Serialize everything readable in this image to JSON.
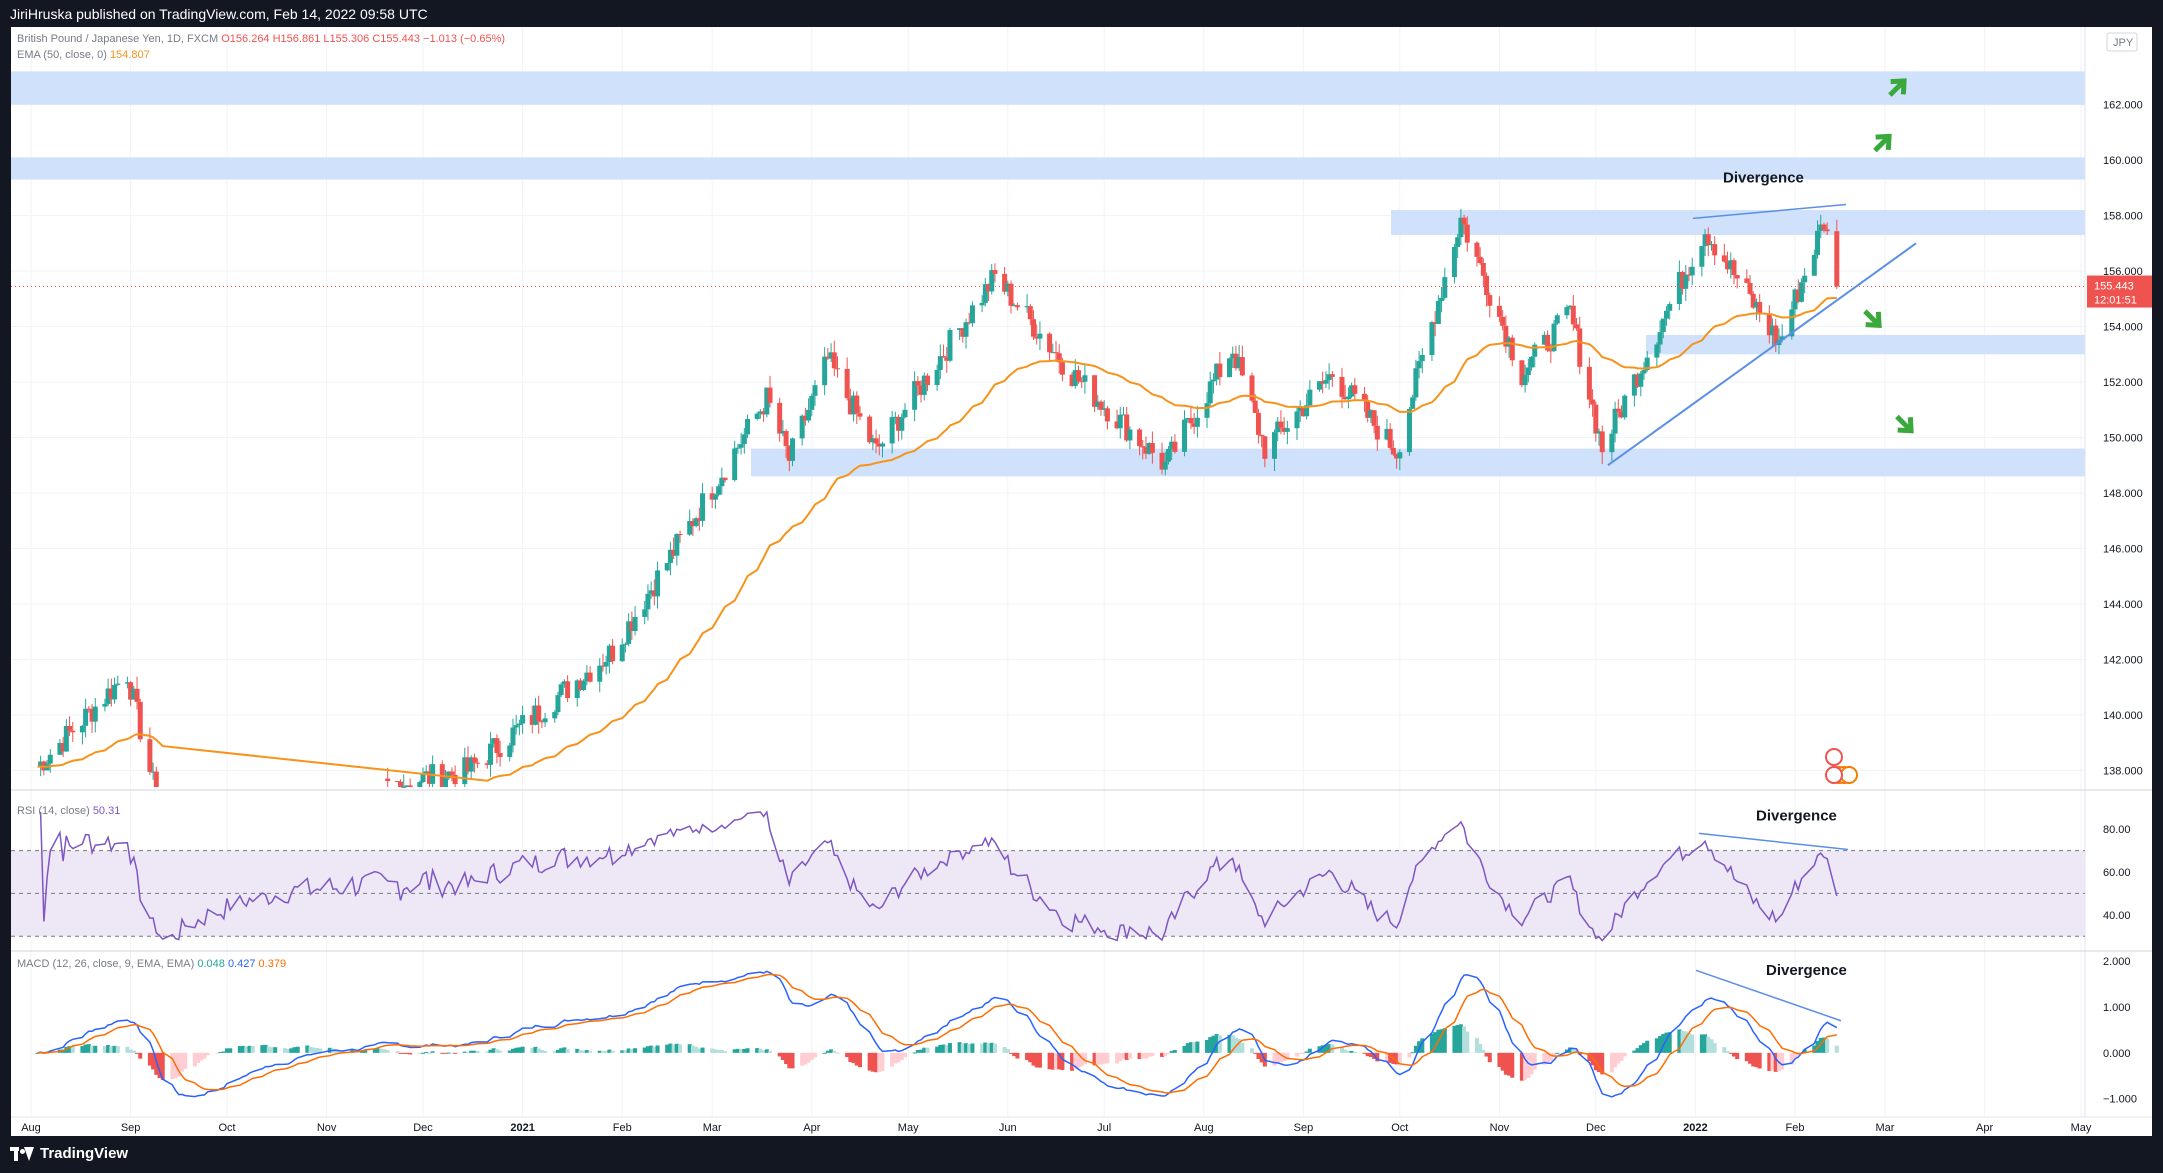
{
  "header": {
    "published": "JiriHruska published on TradingView.com, Feb 14, 2022 09:58 UTC"
  },
  "footer": {
    "brand": "TradingView"
  },
  "colors": {
    "up": "#26a69a",
    "down": "#ef5350",
    "ema": "#f7931a",
    "zone": "#cfe1fb",
    "trend": "#5b8fe6",
    "arrow": "#3aa83a",
    "rsi": "#7e57c2",
    "macd": "#2962ff",
    "signal": "#ff6d00"
  },
  "chart_data": [
    {
      "type": "candlestick",
      "symbol": "British Pound / Japanese Yen, 1D, FXCM",
      "ohlc_label": {
        "o": "O156.264",
        "h": "H156.861",
        "l": "L155.306",
        "c": "C155.443",
        "chg": "−1.013 (−0.65%)"
      },
      "ema_label": "EMA (50, close, 0)",
      "ema_value": "154.807",
      "currency": "JPY",
      "last_price": "155.443",
      "countdown": "12:01:51",
      "ylim": [
        137.4,
        164.8
      ],
      "y_ticks": [
        "162.000",
        "160.000",
        "158.000",
        "156.000",
        "154.000",
        "152.000",
        "150.000",
        "148.000",
        "146.000",
        "144.000",
        "142.000",
        "140.000",
        "138.000"
      ],
      "x_ticks": [
        "Aug",
        "Sep",
        "Oct",
        "Nov",
        "Dec",
        "2021",
        "Feb",
        "Mar",
        "Apr",
        "May",
        "Jun",
        "Jul",
        "Aug",
        "Sep",
        "Oct",
        "Nov",
        "Dec",
        "2022",
        "Feb",
        "Mar",
        "Apr",
        "May"
      ],
      "key_prices": [
        {
          "date": "2020-08-01",
          "close": 137.9
        },
        {
          "date": "2020-08-31",
          "close": 141.5
        },
        {
          "date": "2020-09-11",
          "close": 136.0
        },
        {
          "date": "2020-12-15",
          "close": 138.0
        },
        {
          "date": "2021-01-29",
          "close": 142.3
        },
        {
          "date": "2021-03-18",
          "close": 151.4
        },
        {
          "date": "2021-03-25",
          "close": 149.2
        },
        {
          "date": "2021-04-06",
          "close": 152.8
        },
        {
          "date": "2021-04-21",
          "close": 149.5
        },
        {
          "date": "2021-05-28",
          "close": 155.8
        },
        {
          "date": "2021-06-21",
          "close": 152.3
        },
        {
          "date": "2021-07-20",
          "close": 149.0
        },
        {
          "date": "2021-08-10",
          "close": 153.2
        },
        {
          "date": "2021-08-20",
          "close": 149.6
        },
        {
          "date": "2021-09-10",
          "close": 152.3
        },
        {
          "date": "2021-09-30",
          "close": 149.5
        },
        {
          "date": "2021-10-20",
          "close": 157.9
        },
        {
          "date": "2021-11-08",
          "close": 152.3
        },
        {
          "date": "2021-11-23",
          "close": 154.5
        },
        {
          "date": "2021-12-03",
          "close": 149.6
        },
        {
          "date": "2022-01-04",
          "close": 157.5
        },
        {
          "date": "2022-01-27",
          "close": 153.4
        },
        {
          "date": "2022-02-10",
          "close": 157.8
        },
        {
          "date": "2022-02-14",
          "close": 155.443
        }
      ],
      "zones": [
        {
          "from": 162.0,
          "to": 163.2
        },
        {
          "from": 159.3,
          "to": 160.1
        },
        {
          "from": 157.3,
          "to": 158.2
        },
        {
          "from": 153.0,
          "to": 153.7
        },
        {
          "from": 148.6,
          "to": 149.6
        }
      ],
      "annotations": [
        "Divergence"
      ]
    },
    {
      "type": "line",
      "label": "RSI (14, close)",
      "value": "50.31",
      "ylim": [
        25,
        95
      ],
      "y_ticks": [
        "80.00",
        "60.00",
        "40.00"
      ],
      "levels": [
        70,
        50,
        30
      ],
      "annotation": "Divergence"
    },
    {
      "type": "histogram+line",
      "label": "MACD (12, 26, close, 9, EMA, EMA)",
      "values": {
        "hist": "0.048",
        "macd": "0.427",
        "signal": "0.379"
      },
      "ylim": [
        -1.4,
        2.2
      ],
      "y_ticks": [
        "2.000",
        "1.000",
        "0.000",
        "−1.000"
      ],
      "annotation": "Divergence"
    }
  ]
}
